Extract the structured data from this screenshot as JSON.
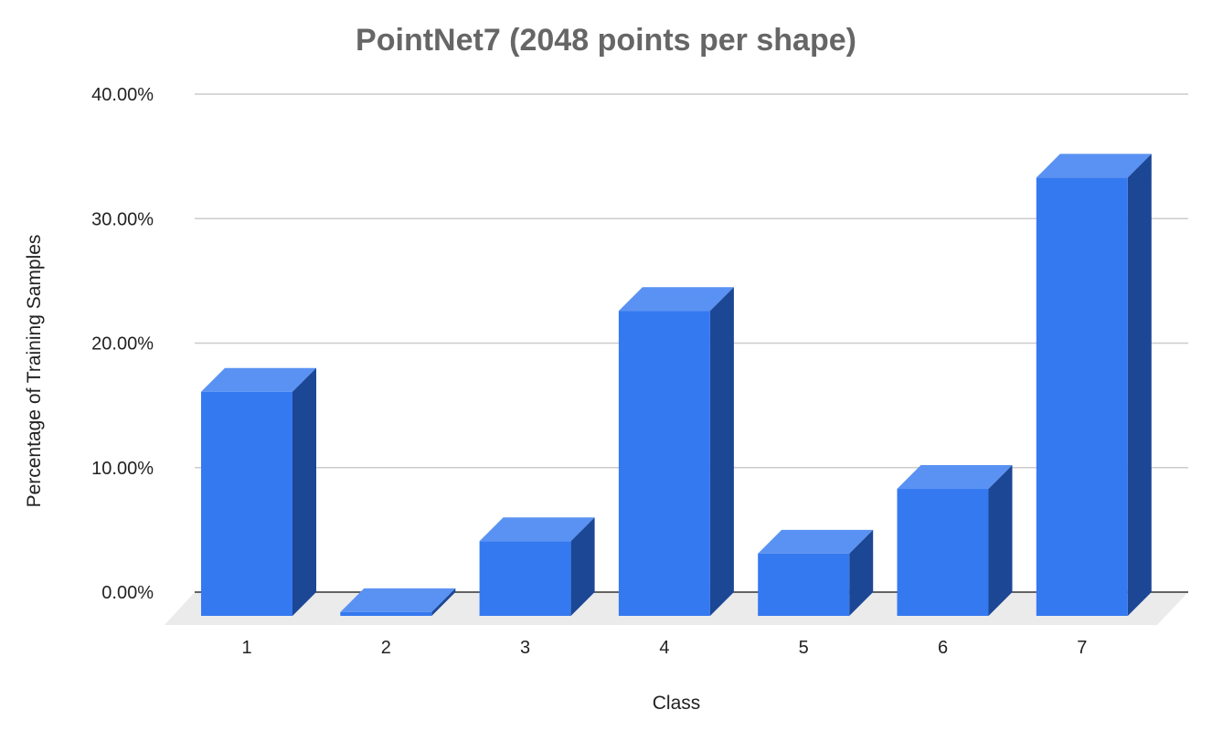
{
  "chart_data": {
    "type": "bar",
    "title": "PointNet7 (2048 points per shape)",
    "xlabel": "Class",
    "ylabel": "Percentage of Training Samples",
    "categories": [
      "1",
      "2",
      "3",
      "4",
      "5",
      "6",
      "7"
    ],
    "values": [
      18.0,
      0.3,
      6.0,
      24.5,
      5.0,
      10.2,
      35.2
    ],
    "ylim": [
      0,
      40
    ],
    "yticks": [
      "0.00%",
      "10.00%",
      "20.00%",
      "30.00%",
      "40.00%"
    ],
    "grid": true,
    "legend": "none",
    "style": "3d-column",
    "colors": {
      "front": "#3579f0",
      "top": "#5a92f3",
      "side": "#1c4795",
      "floor": "#ebebeb"
    }
  }
}
